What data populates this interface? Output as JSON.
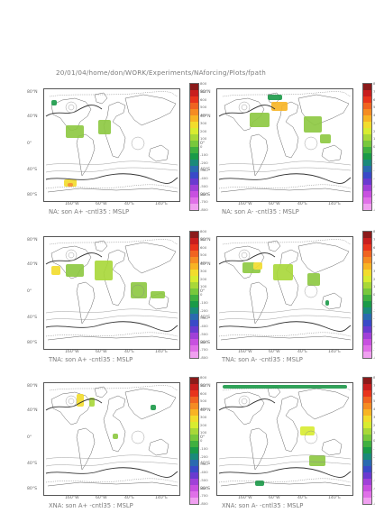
{
  "header": "20/01/04/home/don/WORK/Experiments/NAforcing/Plots/fpath",
  "lat_labels": [
    "80°N",
    "40°N",
    "0°",
    "40°S",
    "80°S"
  ],
  "lon_labels": [
    "160°W",
    "60°W",
    "40°E",
    "140°E"
  ],
  "colorbar": {
    "labels": [
      "800",
      "700",
      "600",
      "500",
      "400",
      "300",
      "200",
      "100",
      "0",
      "-100",
      "-200",
      "-300",
      "-400",
      "-500",
      "-600",
      "-700",
      "-800"
    ],
    "colors": [
      "#8b1a1a",
      "#c81e1e",
      "#e8341c",
      "#f06420",
      "#f58c22",
      "#f8b424",
      "#f2dc2c",
      "#d8ec30",
      "#a8d838",
      "#78c83c",
      "#40b040",
      "#1a9a48",
      "#1a8a7a",
      "#2a6ab0",
      "#3a4ac8",
      "#6a3ad0",
      "#a040d8",
      "#c850e0",
      "#e070e8",
      "#f0a0f0"
    ]
  },
  "panels": [
    {
      "title": "NA: son A+ -cntl35 : MSLP"
    },
    {
      "title": "NA: son A- -cntl35 : MSLP"
    },
    {
      "title": "TNA: son A+ -cntl35 : MSLP"
    },
    {
      "title": "TNA: son A- -cntl35 : MSLP"
    },
    {
      "title": "XNA: son A+ -cntl35 : MSLP"
    },
    {
      "title": "XNA: son A- -cntl35 : MSLP"
    }
  ]
}
